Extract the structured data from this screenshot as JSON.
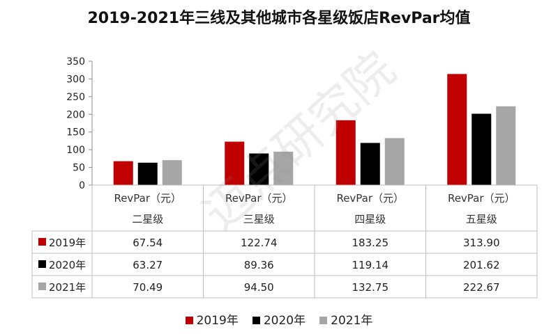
{
  "chart_data": {
    "type": "bar",
    "title": "2019-2021年三线及其他城市各星级饭店RevPar均值",
    "metric_label": "RevPar（元）",
    "categories": [
      "二星级",
      "三星级",
      "四星级",
      "五星级"
    ],
    "series": [
      {
        "name": "2019年",
        "color": "#C00000",
        "values": [
          67.54,
          122.74,
          183.25,
          313.9
        ],
        "labels": [
          "67.54",
          "122.74",
          "183.25",
          "313.90"
        ]
      },
      {
        "name": "2020年",
        "color": "#000000",
        "values": [
          63.27,
          89.36,
          119.14,
          201.62
        ],
        "labels": [
          "63.27",
          "89.36",
          "119.14",
          "201.62"
        ]
      },
      {
        "name": "2021年",
        "color": "#A6A6A6",
        "values": [
          70.49,
          94.5,
          132.75,
          222.67
        ],
        "labels": [
          "70.49",
          "94.50",
          "132.75",
          "222.67"
        ]
      }
    ],
    "ylim": [
      0,
      350
    ],
    "yticks": [
      "0",
      "50",
      "100",
      "150",
      "200",
      "250",
      "300",
      "350"
    ],
    "grid": false,
    "legend": "bottom",
    "data_table": true
  },
  "watermark": "迈点研究院"
}
